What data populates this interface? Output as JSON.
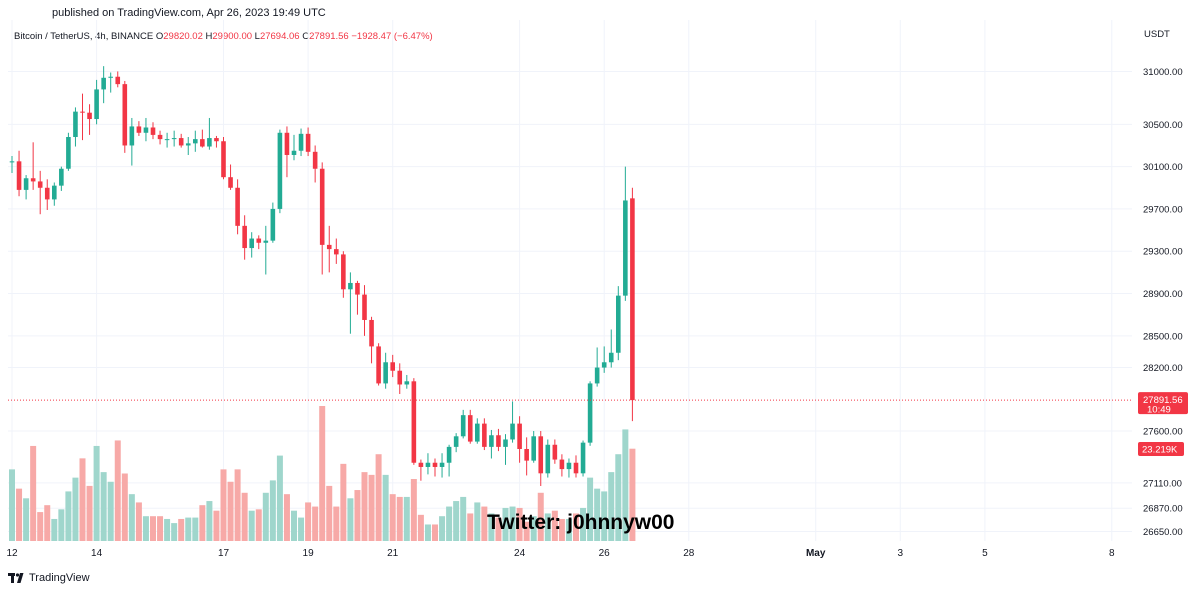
{
  "header": {
    "published": "published on TradingView.com, Apr 26, 2023 19:49 UTC",
    "symbol": "Bitcoin / TetherUS, 4h, BINANCE",
    "open_label": "O",
    "open": "29820.02",
    "high_label": "H",
    "high": "29900.00",
    "low_label": "L",
    "low": "27694.06",
    "close_label": "C",
    "close": "27891.56",
    "change": "−1928.47 (−6.47%)",
    "currency": "USDT"
  },
  "footer": {
    "brand": "TradingView"
  },
  "colors": {
    "up": "#22ab94",
    "down": "#f23645",
    "vol_up": "#9fd6cc",
    "vol_down": "#f7a9a7",
    "grid": "#f0f3fa"
  },
  "chart_data": {
    "type": "candlestick",
    "timeframe": "4h",
    "ylim": [
      26560,
      31250
    ],
    "y_ticks": [
      31000,
      30500,
      30100,
      29700,
      29300,
      28900,
      28500,
      28200,
      27600,
      27110,
      26870,
      26650
    ],
    "y_tick_labels": [
      "31000.00",
      "30500.00",
      "30100.00",
      "29700.00",
      "29300.00",
      "28900.00",
      "28500.00",
      "28200.00",
      "27600.00",
      "27110.00",
      "26870.00",
      "26650.00"
    ],
    "x_ticks": [
      {
        "label": "12",
        "bar": 0,
        "bold": false
      },
      {
        "label": "14",
        "bar": 12,
        "bold": false
      },
      {
        "label": "17",
        "bar": 30,
        "bold": false
      },
      {
        "label": "19",
        "bar": 42,
        "bold": false
      },
      {
        "label": "21",
        "bar": 54,
        "bold": false
      },
      {
        "label": "24",
        "bar": 72,
        "bold": false
      },
      {
        "label": "26",
        "bar": 84,
        "bold": false
      },
      {
        "label": "28",
        "bar": 96,
        "bold": false
      },
      {
        "label": "May",
        "bar": 114,
        "bold": true
      },
      {
        "label": "3",
        "bar": 126,
        "bold": false
      },
      {
        "label": "5",
        "bar": 138,
        "bold": false
      },
      {
        "label": "8",
        "bar": 156,
        "bold": false
      }
    ],
    "last_price": {
      "value": 27891.56,
      "label": "27891.56",
      "countdown": "10:49"
    },
    "last_volume": {
      "label": "23.219K"
    },
    "annotation": "Twitter: j0hnnyw00",
    "candles": [
      [
        30140,
        30200,
        30040,
        30150,
        5200
      ],
      [
        30150,
        30250,
        29820,
        29880,
        3800
      ],
      [
        29880,
        30020,
        29790,
        29990,
        3100
      ],
      [
        29990,
        30330,
        29880,
        29960,
        6900
      ],
      [
        29960,
        30060,
        29650,
        29900,
        2100
      ],
      [
        29900,
        29980,
        29690,
        29790,
        2600
      ],
      [
        29790,
        29950,
        29730,
        29920,
        1600
      ],
      [
        29920,
        30100,
        29870,
        30080,
        2300
      ],
      [
        30080,
        30420,
        30060,
        30380,
        3600
      ],
      [
        30380,
        30660,
        30290,
        30620,
        4600
      ],
      [
        30620,
        30790,
        30350,
        30610,
        6000
      ],
      [
        30610,
        30690,
        30400,
        30550,
        4000
      ],
      [
        30550,
        30920,
        30500,
        30830,
        6900
      ],
      [
        30830,
        31050,
        30700,
        30940,
        5000
      ],
      [
        30940,
        30990,
        30800,
        30950,
        4300
      ],
      [
        30950,
        31000,
        30850,
        30880,
        7300
      ],
      [
        30880,
        30910,
        30230,
        30300,
        4900
      ],
      [
        30300,
        30560,
        30110,
        30480,
        3400
      ],
      [
        30480,
        30530,
        30390,
        30420,
        2800
      ],
      [
        30420,
        30560,
        30340,
        30470,
        1800
      ],
      [
        30470,
        30520,
        30360,
        30400,
        1800
      ],
      [
        30400,
        30440,
        30310,
        30360,
        1800
      ],
      [
        30360,
        30420,
        30280,
        30360,
        1600
      ],
      [
        30360,
        30440,
        30290,
        30370,
        1300
      ],
      [
        30370,
        30410,
        30280,
        30300,
        1600
      ],
      [
        30300,
        30380,
        30210,
        30320,
        1700
      ],
      [
        30320,
        30440,
        30240,
        30360,
        1700
      ],
      [
        30360,
        30450,
        30280,
        30290,
        2600
      ],
      [
        30290,
        30560,
        30260,
        30370,
        2900
      ],
      [
        30370,
        30390,
        30280,
        30340,
        2200
      ],
      [
        30340,
        30380,
        29980,
        30000,
        5200
      ],
      [
        30000,
        30120,
        29880,
        29900,
        4300
      ],
      [
        29900,
        29980,
        29460,
        29540,
        5200
      ],
      [
        29540,
        29640,
        29220,
        29330,
        3500
      ],
      [
        29330,
        29480,
        29240,
        29420,
        2200
      ],
      [
        29420,
        29450,
        29320,
        29380,
        2300
      ],
      [
        29380,
        29540,
        29080,
        29400,
        3500
      ],
      [
        29400,
        29760,
        29380,
        29700,
        4400
      ],
      [
        29700,
        30450,
        29660,
        30420,
        6200
      ],
      [
        30420,
        30480,
        30000,
        30210,
        3400
      ],
      [
        30210,
        30400,
        30160,
        30250,
        2200
      ],
      [
        30250,
        30460,
        30200,
        30410,
        1700
      ],
      [
        30410,
        30470,
        30200,
        30240,
        2800
      ],
      [
        30240,
        30300,
        29950,
        30080,
        2500
      ],
      [
        30080,
        30140,
        29080,
        29360,
        9800
      ],
      [
        29360,
        29540,
        29100,
        29320,
        4000
      ],
      [
        29320,
        29420,
        29180,
        29270,
        2500
      ],
      [
        29270,
        29300,
        28860,
        28940,
        5600
      ],
      [
        28940,
        29100,
        28520,
        29000,
        3100
      ],
      [
        29000,
        29020,
        28700,
        28890,
        3700
      ],
      [
        28890,
        28980,
        28500,
        28650,
        5000
      ],
      [
        28650,
        28680,
        28240,
        28400,
        4800
      ],
      [
        28400,
        28430,
        28030,
        28050,
        6300
      ],
      [
        28050,
        28340,
        28000,
        28250,
        4800
      ],
      [
        28250,
        28320,
        28110,
        28170,
        3400
      ],
      [
        28170,
        28240,
        27950,
        28040,
        3200
      ],
      [
        28040,
        28130,
        28000,
        28070,
        3200
      ],
      [
        28070,
        28100,
        27280,
        27300,
        4500
      ],
      [
        27300,
        27330,
        27130,
        27260,
        1900
      ],
      [
        27260,
        27390,
        27190,
        27300,
        1200
      ],
      [
        27300,
        27340,
        27170,
        27260,
        1200
      ],
      [
        27260,
        27390,
        27160,
        27300,
        1800
      ],
      [
        27300,
        27470,
        27170,
        27450,
        2500
      ],
      [
        27450,
        27580,
        27400,
        27550,
        2900
      ],
      [
        27550,
        27800,
        27530,
        27750,
        3200
      ],
      [
        27750,
        27800,
        27480,
        27500,
        2000
      ],
      [
        27500,
        27720,
        27480,
        27670,
        2800
      ],
      [
        27670,
        27720,
        27420,
        27450,
        2500
      ],
      [
        27450,
        27610,
        27340,
        27560,
        2000
      ],
      [
        27560,
        27620,
        27410,
        27450,
        1700
      ],
      [
        27450,
        27570,
        27280,
        27520,
        2400
      ],
      [
        27520,
        27880,
        27490,
        27670,
        2500
      ],
      [
        27670,
        27740,
        27300,
        27430,
        2400
      ],
      [
        27430,
        27540,
        27180,
        27320,
        1400
      ],
      [
        27320,
        27600,
        27300,
        27550,
        1800
      ],
      [
        27550,
        27600,
        27080,
        27200,
        3500
      ],
      [
        27200,
        27520,
        27160,
        27470,
        2000
      ],
      [
        27470,
        27520,
        27290,
        27330,
        2200
      ],
      [
        27330,
        27380,
        27170,
        27240,
        1600
      ],
      [
        27240,
        27340,
        27160,
        27300,
        1600
      ],
      [
        27300,
        27370,
        27160,
        27200,
        2000
      ],
      [
        27200,
        27510,
        27170,
        27490,
        2400
      ],
      [
        27490,
        28070,
        27460,
        28050,
        4600
      ],
      [
        28050,
        28390,
        28020,
        28200,
        3800
      ],
      [
        28200,
        28400,
        28150,
        28250,
        3600
      ],
      [
        28250,
        28560,
        28200,
        28340,
        5000
      ],
      [
        28340,
        28970,
        28270,
        28880,
        6300
      ],
      [
        28880,
        30100,
        28830,
        29780,
        8100
      ],
      [
        29800,
        29900,
        27694,
        27892,
        6700
      ]
    ]
  }
}
